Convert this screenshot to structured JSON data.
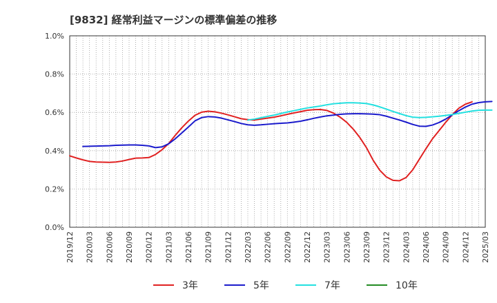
{
  "chart_data": {
    "type": "line",
    "title": "[9832]  経常利益マージンの標準偏差の推移",
    "xlabel": "",
    "ylabel": "",
    "x_ticks": [
      "2019/12",
      "2020/03",
      "2020/06",
      "2020/09",
      "2020/12",
      "2021/03",
      "2021/06",
      "2021/09",
      "2021/12",
      "2022/03",
      "2022/06",
      "2022/09",
      "2022/12",
      "2023/03",
      "2023/06",
      "2023/09",
      "2023/12",
      "2024/03",
      "2024/06",
      "2024/09",
      "2024/12",
      "2025/03"
    ],
    "y_ticks": [
      "0.0%",
      "0.2%",
      "0.4%",
      "0.6%",
      "0.8%",
      "1.0%"
    ],
    "ylim": [
      0,
      1.0
    ],
    "grid": true,
    "legend_position": "bottom",
    "series": [
      {
        "name": "3年",
        "color": "#e02020",
        "points": [
          [
            "2019/12",
            0.373
          ],
          [
            "2020/01",
            0.362
          ],
          [
            "2020/02",
            0.352
          ],
          [
            "2020/03",
            0.344
          ],
          [
            "2020/04",
            0.341
          ],
          [
            "2020/05",
            0.34
          ],
          [
            "2020/06",
            0.339
          ],
          [
            "2020/07",
            0.341
          ],
          [
            "2020/08",
            0.346
          ],
          [
            "2020/09",
            0.354
          ],
          [
            "2020/10",
            0.361
          ],
          [
            "2020/11",
            0.362
          ],
          [
            "2020/12",
            0.364
          ],
          [
            "2021/01",
            0.38
          ],
          [
            "2021/02",
            0.405
          ],
          [
            "2021/03",
            0.437
          ],
          [
            "2021/04",
            0.48
          ],
          [
            "2021/05",
            0.52
          ],
          [
            "2021/06",
            0.555
          ],
          [
            "2021/07",
            0.585
          ],
          [
            "2021/08",
            0.601
          ],
          [
            "2021/09",
            0.606
          ],
          [
            "2021/10",
            0.603
          ],
          [
            "2021/11",
            0.596
          ],
          [
            "2021/12",
            0.587
          ],
          [
            "2022/01",
            0.577
          ],
          [
            "2022/02",
            0.567
          ],
          [
            "2022/03",
            0.562
          ],
          [
            "2022/04",
            0.56
          ],
          [
            "2022/05",
            0.565
          ],
          [
            "2022/06",
            0.57
          ],
          [
            "2022/07",
            0.575
          ],
          [
            "2022/08",
            0.582
          ],
          [
            "2022/09",
            0.59
          ],
          [
            "2022/10",
            0.597
          ],
          [
            "2022/11",
            0.604
          ],
          [
            "2022/12",
            0.611
          ],
          [
            "2023/01",
            0.614
          ],
          [
            "2023/02",
            0.615
          ],
          [
            "2023/03",
            0.61
          ],
          [
            "2023/04",
            0.596
          ],
          [
            "2023/05",
            0.575
          ],
          [
            "2023/06",
            0.548
          ],
          [
            "2023/07",
            0.512
          ],
          [
            "2023/08",
            0.468
          ],
          [
            "2023/09",
            0.415
          ],
          [
            "2023/10",
            0.35
          ],
          [
            "2023/11",
            0.298
          ],
          [
            "2023/12",
            0.263
          ],
          [
            "2024/01",
            0.245
          ],
          [
            "2024/02",
            0.243
          ],
          [
            "2024/03",
            0.26
          ],
          [
            "2024/04",
            0.3
          ],
          [
            "2024/05",
            0.355
          ],
          [
            "2024/06",
            0.41
          ],
          [
            "2024/07",
            0.462
          ],
          [
            "2024/08",
            0.505
          ],
          [
            "2024/09",
            0.548
          ],
          [
            "2024/10",
            0.588
          ],
          [
            "2024/11",
            0.622
          ],
          [
            "2024/12",
            0.643
          ],
          [
            "2025/01",
            0.655
          ]
        ]
      },
      {
        "name": "5年",
        "color": "#1a1acc",
        "points": [
          [
            "2020/02",
            0.422
          ],
          [
            "2020/03",
            0.423
          ],
          [
            "2020/04",
            0.424
          ],
          [
            "2020/05",
            0.425
          ],
          [
            "2020/06",
            0.426
          ],
          [
            "2020/07",
            0.428
          ],
          [
            "2020/08",
            0.429
          ],
          [
            "2020/09",
            0.43
          ],
          [
            "2020/10",
            0.43
          ],
          [
            "2020/11",
            0.428
          ],
          [
            "2020/12",
            0.425
          ],
          [
            "2021/01",
            0.416
          ],
          [
            "2021/02",
            0.42
          ],
          [
            "2021/03",
            0.436
          ],
          [
            "2021/04",
            0.462
          ],
          [
            "2021/05",
            0.493
          ],
          [
            "2021/06",
            0.524
          ],
          [
            "2021/07",
            0.556
          ],
          [
            "2021/08",
            0.573
          ],
          [
            "2021/09",
            0.578
          ],
          [
            "2021/10",
            0.576
          ],
          [
            "2021/11",
            0.57
          ],
          [
            "2021/12",
            0.561
          ],
          [
            "2022/01",
            0.552
          ],
          [
            "2022/02",
            0.542
          ],
          [
            "2022/03",
            0.535
          ],
          [
            "2022/04",
            0.533
          ],
          [
            "2022/05",
            0.535
          ],
          [
            "2022/06",
            0.538
          ],
          [
            "2022/07",
            0.541
          ],
          [
            "2022/08",
            0.543
          ],
          [
            "2022/09",
            0.545
          ],
          [
            "2022/10",
            0.549
          ],
          [
            "2022/11",
            0.554
          ],
          [
            "2022/12",
            0.561
          ],
          [
            "2023/01",
            0.569
          ],
          [
            "2023/02",
            0.576
          ],
          [
            "2023/03",
            0.582
          ],
          [
            "2023/04",
            0.586
          ],
          [
            "2023/05",
            0.59
          ],
          [
            "2023/06",
            0.592
          ],
          [
            "2023/07",
            0.593
          ],
          [
            "2023/08",
            0.593
          ],
          [
            "2023/09",
            0.592
          ],
          [
            "2023/10",
            0.591
          ],
          [
            "2023/11",
            0.588
          ],
          [
            "2023/12",
            0.58
          ],
          [
            "2024/01",
            0.57
          ],
          [
            "2024/02",
            0.56
          ],
          [
            "2024/03",
            0.549
          ],
          [
            "2024/04",
            0.537
          ],
          [
            "2024/05",
            0.528
          ],
          [
            "2024/06",
            0.527
          ],
          [
            "2024/07",
            0.534
          ],
          [
            "2024/08",
            0.547
          ],
          [
            "2024/09",
            0.565
          ],
          [
            "2024/10",
            0.587
          ],
          [
            "2024/11",
            0.609
          ],
          [
            "2024/12",
            0.628
          ],
          [
            "2025/01",
            0.643
          ],
          [
            "2025/02",
            0.651
          ],
          [
            "2025/03",
            0.655
          ],
          [
            "2025/04",
            0.657
          ]
        ]
      },
      {
        "name": "7年",
        "color": "#22e0e0",
        "points": [
          [
            "2022/03",
            0.56
          ],
          [
            "2022/04",
            0.565
          ],
          [
            "2022/05",
            0.572
          ],
          [
            "2022/06",
            0.579
          ],
          [
            "2022/07",
            0.586
          ],
          [
            "2022/08",
            0.594
          ],
          [
            "2022/09",
            0.602
          ],
          [
            "2022/10",
            0.609
          ],
          [
            "2022/11",
            0.616
          ],
          [
            "2022/12",
            0.623
          ],
          [
            "2023/01",
            0.628
          ],
          [
            "2023/02",
            0.633
          ],
          [
            "2023/03",
            0.64
          ],
          [
            "2023/04",
            0.645
          ],
          [
            "2023/05",
            0.648
          ],
          [
            "2023/06",
            0.65
          ],
          [
            "2023/07",
            0.65
          ],
          [
            "2023/08",
            0.649
          ],
          [
            "2023/09",
            0.646
          ],
          [
            "2023/10",
            0.639
          ],
          [
            "2023/11",
            0.629
          ],
          [
            "2023/12",
            0.617
          ],
          [
            "2024/01",
            0.605
          ],
          [
            "2024/02",
            0.594
          ],
          [
            "2024/03",
            0.583
          ],
          [
            "2024/04",
            0.575
          ],
          [
            "2024/05",
            0.573
          ],
          [
            "2024/06",
            0.574
          ],
          [
            "2024/07",
            0.577
          ],
          [
            "2024/08",
            0.58
          ],
          [
            "2024/09",
            0.584
          ],
          [
            "2024/10",
            0.589
          ],
          [
            "2024/11",
            0.595
          ],
          [
            "2024/12",
            0.601
          ],
          [
            "2025/01",
            0.607
          ],
          [
            "2025/02",
            0.611
          ],
          [
            "2025/03",
            0.612
          ],
          [
            "2025/04",
            0.612
          ]
        ]
      },
      {
        "name": "10年",
        "color": "#228b22",
        "points": []
      }
    ]
  }
}
